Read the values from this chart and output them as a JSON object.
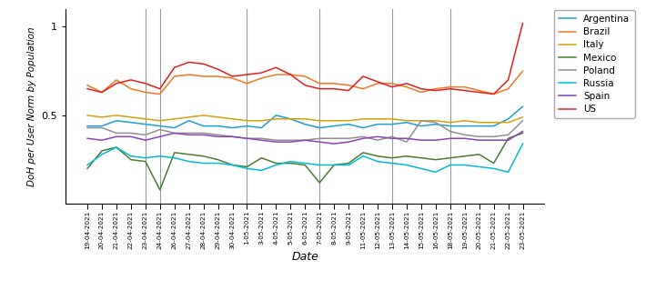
{
  "dates": [
    "19-04-2021",
    "20-04-2021",
    "21-04-2021",
    "22-04-2021",
    "23-04-2021",
    "24-04-2021",
    "26-04-2021",
    "27-04-2021",
    "28-04-2021",
    "29-04-2021",
    "30-04-2021",
    "1-05-2021",
    "3-05-2021",
    "4-05-2021",
    "5-05-2021",
    "6-05-2021",
    "7-05-2021",
    "8-05-2021",
    "9-05-2021",
    "11-05-2021",
    "12-05-2021",
    "13-05-2021",
    "14-05-2021",
    "15-05-2021",
    "16-05-2021",
    "18-05-2021",
    "19-05-2021",
    "20-05-2021",
    "21-05-2021",
    "22-05-2021",
    "23-05-2021"
  ],
  "Argentina": [
    0.44,
    0.44,
    0.47,
    0.46,
    0.45,
    0.44,
    0.43,
    0.47,
    0.44,
    0.44,
    0.43,
    0.44,
    0.43,
    0.5,
    0.48,
    0.45,
    0.43,
    0.44,
    0.45,
    0.43,
    0.45,
    0.45,
    0.46,
    0.44,
    0.45,
    0.44,
    0.44,
    0.44,
    0.44,
    0.48,
    0.55
  ],
  "Brazil": [
    0.67,
    0.63,
    0.7,
    0.65,
    0.63,
    0.62,
    0.72,
    0.73,
    0.72,
    0.72,
    0.71,
    0.68,
    0.71,
    0.73,
    0.73,
    0.72,
    0.68,
    0.68,
    0.67,
    0.65,
    0.68,
    0.68,
    0.66,
    0.63,
    0.65,
    0.66,
    0.66,
    0.64,
    0.62,
    0.65,
    0.75
  ],
  "Italy": [
    0.5,
    0.49,
    0.5,
    0.49,
    0.48,
    0.47,
    0.48,
    0.49,
    0.5,
    0.49,
    0.48,
    0.47,
    0.47,
    0.48,
    0.48,
    0.48,
    0.47,
    0.47,
    0.47,
    0.48,
    0.48,
    0.48,
    0.47,
    0.47,
    0.47,
    0.46,
    0.47,
    0.46,
    0.46,
    0.46,
    0.49
  ],
  "Mexico": [
    0.2,
    0.3,
    0.32,
    0.25,
    0.24,
    0.08,
    0.29,
    0.28,
    0.27,
    0.25,
    0.22,
    0.21,
    0.26,
    0.23,
    0.23,
    0.22,
    0.12,
    0.22,
    0.23,
    0.29,
    0.27,
    0.26,
    0.27,
    0.26,
    0.25,
    0.26,
    0.27,
    0.28,
    0.23,
    0.37,
    0.4
  ],
  "Poland": [
    0.43,
    0.43,
    0.4,
    0.4,
    0.39,
    0.42,
    0.4,
    0.4,
    0.4,
    0.39,
    0.38,
    0.37,
    0.37,
    0.36,
    0.36,
    0.36,
    0.37,
    0.37,
    0.37,
    0.38,
    0.36,
    0.38,
    0.35,
    0.47,
    0.46,
    0.41,
    0.39,
    0.38,
    0.38,
    0.39,
    0.47
  ],
  "Russia": [
    0.22,
    0.28,
    0.32,
    0.27,
    0.26,
    0.27,
    0.26,
    0.24,
    0.23,
    0.23,
    0.22,
    0.2,
    0.19,
    0.22,
    0.24,
    0.23,
    0.22,
    0.22,
    0.22,
    0.27,
    0.24,
    0.23,
    0.22,
    0.2,
    0.18,
    0.22,
    0.22,
    0.21,
    0.2,
    0.18,
    0.34
  ],
  "Spain": [
    0.37,
    0.36,
    0.38,
    0.38,
    0.36,
    0.38,
    0.4,
    0.39,
    0.39,
    0.38,
    0.38,
    0.37,
    0.36,
    0.35,
    0.35,
    0.36,
    0.35,
    0.34,
    0.35,
    0.37,
    0.38,
    0.37,
    0.37,
    0.36,
    0.36,
    0.37,
    0.37,
    0.36,
    0.36,
    0.36,
    0.41
  ],
  "US": [
    0.65,
    0.63,
    0.68,
    0.7,
    0.68,
    0.65,
    0.77,
    0.8,
    0.79,
    0.76,
    0.72,
    0.73,
    0.74,
    0.77,
    0.73,
    0.67,
    0.65,
    0.65,
    0.64,
    0.72,
    0.69,
    0.66,
    0.68,
    0.65,
    0.64,
    0.65,
    0.64,
    0.63,
    0.62,
    0.7,
    1.02
  ],
  "colors": {
    "Argentina": "#1c9fd4",
    "Brazil": "#f07820",
    "Italy": "#d4a010",
    "Mexico": "#4a7c2f",
    "Poland": "#909090",
    "Russia": "#00bcd4",
    "Spain": "#8844bb",
    "US": "#e02020"
  },
  "vline_indices": [
    4,
    5,
    11,
    16,
    21,
    25
  ],
  "ylabel": "DoH per User Norm by Population",
  "xlabel": "Date",
  "ylim": [
    0.0,
    1.1
  ],
  "yticks": [
    0.5,
    1.0
  ],
  "figwidth": 7.21,
  "figheight": 3.3,
  "dpi": 100
}
